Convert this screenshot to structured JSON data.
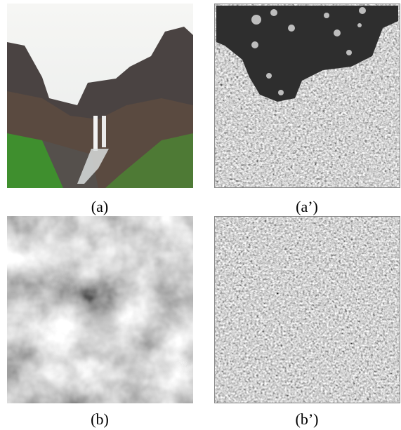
{
  "figure": {
    "panels": [
      {
        "caption": "(a)"
      },
      {
        "caption": "(a’)"
      },
      {
        "caption": "(b)"
      },
      {
        "caption": "(b’)"
      }
    ]
  }
}
